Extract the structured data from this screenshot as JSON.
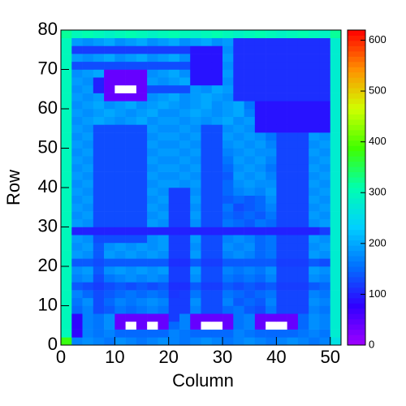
{
  "chart_data": {
    "type": "heatmap",
    "x_label": "Column",
    "y_label": "Row",
    "xlim": [
      0,
      52
    ],
    "ylim": [
      0,
      80
    ],
    "zlim": [
      0,
      620
    ],
    "xticks": [
      0,
      10,
      20,
      30,
      40,
      50
    ],
    "yticks": [
      0,
      10,
      20,
      30,
      40,
      50,
      60,
      70,
      80
    ],
    "zticks": [
      0,
      100,
      200,
      300,
      400,
      500,
      600
    ],
    "colorscale": [
      "#a000ff",
      "#3000ff",
      "#0070ff",
      "#00d0ff",
      "#00ffb0",
      "#40ff00",
      "#d0ff00",
      "#ff9000",
      "#ff0000"
    ],
    "empty_bins_blank": true,
    "values": [
      [
        380,
        170,
        180,
        170,
        160,
        180,
        170,
        160,
        170,
        180,
        170,
        160,
        170,
        180,
        170,
        160,
        170,
        180,
        170,
        160,
        170,
        180,
        170,
        160,
        170,
        260
      ],
      [
        300,
        80,
        170,
        160,
        170,
        150,
        150,
        150,
        150,
        150,
        170,
        160,
        150,
        150,
        150,
        150,
        170,
        160,
        150,
        150,
        150,
        150,
        160,
        170,
        160,
        280
      ],
      [
        300,
        80,
        170,
        160,
        180,
        40,
        0,
        40,
        0,
        40,
        150,
        170,
        40,
        0,
        0,
        40,
        160,
        170,
        40,
        0,
        0,
        40,
        150,
        180,
        170,
        280
      ],
      [
        300,
        80,
        170,
        160,
        180,
        40,
        40,
        40,
        40,
        40,
        120,
        170,
        40,
        40,
        40,
        40,
        160,
        170,
        40,
        40,
        40,
        40,
        150,
        180,
        170,
        280
      ],
      [
        300,
        150,
        170,
        130,
        140,
        160,
        150,
        160,
        170,
        160,
        120,
        120,
        170,
        130,
        130,
        150,
        160,
        140,
        130,
        160,
        125,
        125,
        125,
        170,
        160,
        280
      ],
      [
        300,
        160,
        180,
        130,
        150,
        170,
        160,
        170,
        180,
        170,
        120,
        120,
        180,
        130,
        130,
        170,
        140,
        150,
        140,
        170,
        125,
        125,
        125,
        180,
        170,
        280
      ],
      [
        300,
        170,
        150,
        130,
        140,
        150,
        160,
        150,
        160,
        150,
        115,
        120,
        160,
        130,
        130,
        160,
        150,
        140,
        150,
        160,
        125,
        125,
        125,
        170,
        160,
        280
      ],
      [
        300,
        140,
        130,
        120,
        130,
        140,
        130,
        140,
        130,
        140,
        110,
        110,
        140,
        120,
        120,
        140,
        130,
        140,
        130,
        140,
        120,
        120,
        120,
        140,
        150,
        280
      ],
      [
        300,
        170,
        180,
        130,
        160,
        170,
        180,
        170,
        180,
        170,
        120,
        120,
        180,
        130,
        130,
        160,
        150,
        160,
        150,
        170,
        125,
        125,
        125,
        180,
        170,
        280
      ],
      [
        300,
        180,
        190,
        140,
        180,
        190,
        180,
        190,
        180,
        190,
        120,
        120,
        190,
        130,
        130,
        170,
        160,
        170,
        160,
        180,
        125,
        125,
        125,
        190,
        180,
        280
      ],
      [
        300,
        140,
        140,
        130,
        140,
        140,
        140,
        140,
        140,
        140,
        110,
        110,
        140,
        120,
        120,
        140,
        140,
        140,
        140,
        140,
        120,
        120,
        120,
        140,
        130,
        280
      ],
      [
        300,
        190,
        180,
        140,
        190,
        180,
        190,
        180,
        190,
        180,
        120,
        120,
        190,
        130,
        130,
        170,
        180,
        170,
        150,
        160,
        125,
        125,
        125,
        190,
        180,
        280
      ],
      [
        300,
        180,
        190,
        140,
        180,
        190,
        180,
        190,
        180,
        190,
        120,
        120,
        180,
        130,
        130,
        180,
        170,
        180,
        150,
        160,
        125,
        125,
        125,
        180,
        190,
        280
      ],
      [
        300,
        190,
        180,
        130,
        130,
        130,
        130,
        130,
        180,
        190,
        120,
        120,
        190,
        130,
        130,
        170,
        180,
        170,
        150,
        160,
        125,
        125,
        125,
        190,
        180,
        280
      ],
      [
        300,
        100,
        100,
        100,
        100,
        100,
        100,
        100,
        100,
        100,
        100,
        100,
        100,
        100,
        100,
        100,
        100,
        100,
        100,
        100,
        100,
        100,
        100,
        100,
        120,
        280
      ],
      [
        300,
        190,
        180,
        130,
        130,
        130,
        130,
        130,
        190,
        180,
        120,
        120,
        180,
        130,
        130,
        160,
        150,
        140,
        160,
        150,
        125,
        125,
        125,
        180,
        190,
        280
      ],
      [
        300,
        180,
        190,
        130,
        130,
        130,
        130,
        130,
        180,
        190,
        120,
        120,
        190,
        130,
        130,
        150,
        140,
        150,
        140,
        160,
        125,
        125,
        125,
        190,
        180,
        280
      ],
      [
        300,
        190,
        180,
        130,
        130,
        130,
        130,
        130,
        190,
        180,
        120,
        120,
        180,
        130,
        130,
        160,
        130,
        140,
        150,
        170,
        125,
        125,
        125,
        180,
        190,
        280
      ],
      [
        300,
        180,
        190,
        130,
        130,
        130,
        130,
        130,
        180,
        190,
        120,
        120,
        190,
        130,
        130,
        140,
        150,
        140,
        150,
        180,
        125,
        125,
        125,
        190,
        180,
        280
      ],
      [
        300,
        190,
        180,
        130,
        130,
        130,
        130,
        130,
        190,
        180,
        120,
        120,
        180,
        130,
        130,
        150,
        170,
        180,
        170,
        190,
        125,
        125,
        125,
        180,
        190,
        280
      ],
      [
        300,
        180,
        190,
        130,
        130,
        130,
        130,
        130,
        180,
        190,
        190,
        180,
        190,
        130,
        130,
        150,
        180,
        190,
        180,
        180,
        125,
        125,
        125,
        190,
        180,
        280
      ],
      [
        300,
        190,
        180,
        130,
        130,
        130,
        130,
        130,
        190,
        180,
        180,
        190,
        180,
        130,
        130,
        140,
        190,
        180,
        190,
        170,
        125,
        125,
        125,
        180,
        190,
        280
      ],
      [
        300,
        180,
        190,
        130,
        130,
        130,
        130,
        130,
        180,
        190,
        190,
        180,
        190,
        130,
        130,
        150,
        180,
        190,
        180,
        160,
        125,
        125,
        125,
        190,
        180,
        280
      ],
      [
        300,
        190,
        180,
        130,
        130,
        130,
        130,
        130,
        190,
        180,
        180,
        190,
        180,
        130,
        130,
        160,
        190,
        180,
        190,
        170,
        125,
        125,
        125,
        180,
        190,
        280
      ],
      [
        300,
        180,
        190,
        130,
        130,
        130,
        130,
        130,
        180,
        190,
        190,
        180,
        190,
        130,
        130,
        170,
        180,
        190,
        180,
        180,
        125,
        125,
        125,
        190,
        180,
        280
      ],
      [
        300,
        190,
        180,
        130,
        130,
        130,
        130,
        130,
        190,
        180,
        180,
        190,
        180,
        130,
        130,
        180,
        190,
        180,
        190,
        170,
        125,
        125,
        125,
        180,
        190,
        280
      ],
      [
        300,
        180,
        190,
        130,
        130,
        130,
        130,
        130,
        180,
        190,
        190,
        180,
        190,
        130,
        130,
        190,
        180,
        190,
        180,
        160,
        125,
        125,
        125,
        190,
        180,
        280
      ],
      [
        300,
        190,
        180,
        130,
        130,
        130,
        130,
        130,
        190,
        180,
        180,
        190,
        180,
        130,
        130,
        180,
        190,
        180,
        90,
        90,
        90,
        90,
        90,
        90,
        90,
        280
      ],
      [
        300,
        180,
        190,
        200,
        190,
        180,
        190,
        200,
        180,
        190,
        190,
        180,
        190,
        180,
        190,
        200,
        180,
        190,
        90,
        90,
        90,
        90,
        90,
        90,
        90,
        280
      ],
      [
        300,
        190,
        180,
        190,
        200,
        190,
        180,
        190,
        200,
        180,
        180,
        190,
        200,
        190,
        180,
        190,
        200,
        170,
        90,
        90,
        90,
        90,
        90,
        90,
        90,
        280
      ],
      [
        300,
        180,
        190,
        200,
        180,
        190,
        200,
        180,
        190,
        200,
        190,
        180,
        190,
        200,
        180,
        190,
        200,
        160,
        90,
        90,
        90,
        90,
        90,
        90,
        90,
        280
      ],
      [
        300,
        190,
        180,
        190,
        40,
        40,
        40,
        40,
        180,
        190,
        200,
        180,
        190,
        200,
        190,
        180,
        110,
        110,
        110,
        110,
        110,
        110,
        110,
        110,
        110,
        280
      ],
      [
        300,
        180,
        190,
        100,
        40,
        0,
        0,
        40,
        130,
        130,
        130,
        130,
        190,
        180,
        200,
        190,
        110,
        110,
        110,
        110,
        110,
        110,
        110,
        110,
        110,
        280
      ],
      [
        300,
        190,
        180,
        100,
        40,
        40,
        40,
        40,
        190,
        180,
        190,
        200,
        90,
        90,
        90,
        180,
        110,
        110,
        110,
        110,
        110,
        110,
        110,
        110,
        110,
        280
      ],
      [
        300,
        180,
        190,
        200,
        40,
        40,
        40,
        40,
        180,
        190,
        200,
        180,
        90,
        90,
        90,
        190,
        110,
        110,
        110,
        110,
        110,
        110,
        110,
        110,
        110,
        280
      ],
      [
        300,
        130,
        130,
        130,
        130,
        130,
        130,
        130,
        130,
        130,
        130,
        130,
        90,
        90,
        90,
        180,
        110,
        110,
        110,
        110,
        110,
        110,
        110,
        110,
        110,
        280
      ],
      [
        300,
        190,
        180,
        190,
        200,
        180,
        190,
        200,
        180,
        190,
        200,
        180,
        90,
        90,
        90,
        190,
        110,
        110,
        110,
        110,
        110,
        110,
        110,
        110,
        110,
        280
      ],
      [
        300,
        120,
        120,
        120,
        120,
        120,
        120,
        120,
        120,
        120,
        120,
        120,
        90,
        90,
        90,
        180,
        110,
        110,
        110,
        110,
        110,
        110,
        110,
        110,
        110,
        280
      ],
      [
        300,
        190,
        180,
        190,
        200,
        180,
        190,
        200,
        180,
        190,
        200,
        180,
        190,
        200,
        180,
        190,
        110,
        110,
        110,
        110,
        110,
        110,
        110,
        110,
        110,
        280
      ],
      [
        320,
        300,
        310,
        300,
        290,
        300,
        310,
        300,
        290,
        300,
        310,
        300,
        290,
        300,
        310,
        300,
        290,
        300,
        310,
        300,
        290,
        300,
        310,
        300,
        290,
        320
      ]
    ]
  }
}
